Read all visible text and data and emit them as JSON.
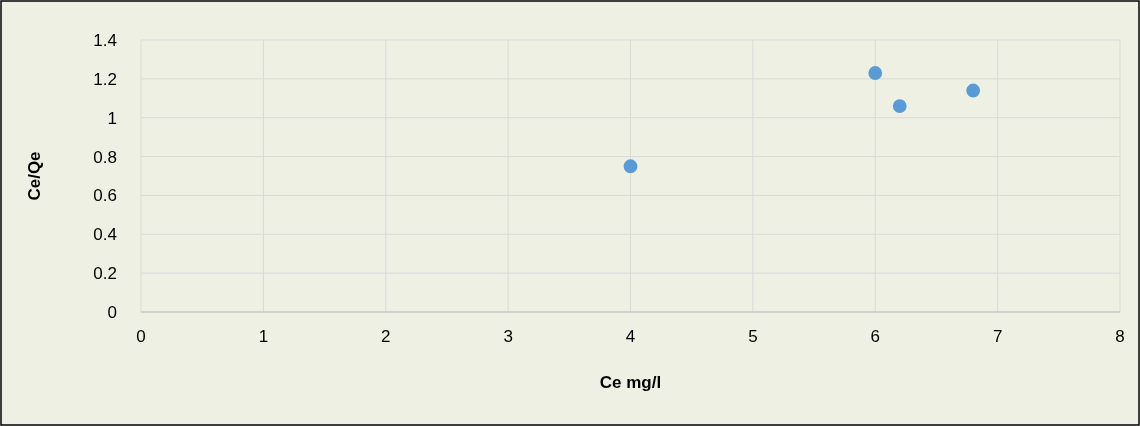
{
  "chart_data": {
    "type": "scatter",
    "xlabel": "Ce mg/l",
    "ylabel": "Ce/Qe",
    "x": [
      4,
      6,
      6.2,
      6.8
    ],
    "series": [
      {
        "color": "#5b9bd5",
        "values": [
          0.75,
          1.23,
          1.06,
          1.14
        ]
      }
    ],
    "xlim": [
      0,
      8
    ],
    "xticks": [
      0,
      1,
      2,
      3,
      4,
      5,
      6,
      7,
      8
    ],
    "ylim": [
      0,
      1.4
    ],
    "yticks": [
      0,
      0.2,
      0.4,
      0.6,
      0.8,
      1,
      1.2,
      1.4
    ],
    "grid": true,
    "marker": "circle"
  }
}
